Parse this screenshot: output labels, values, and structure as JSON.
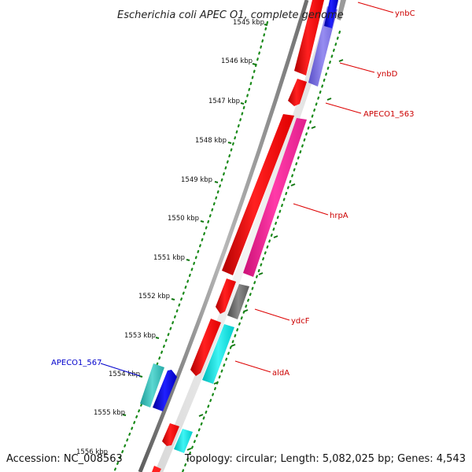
{
  "title": "Escherichia coli APEC O1, complete genome",
  "footer": {
    "accession": "Accession: NC_008563",
    "summary": "Topology: circular; Length: 5,082,025 bp; Genes: 4,543"
  },
  "ticks": [
    {
      "label": "1545 kbp"
    },
    {
      "label": "1546 kbp"
    },
    {
      "label": "1547 kbp"
    },
    {
      "label": "1548 kbp"
    },
    {
      "label": "1549 kbp"
    },
    {
      "label": "1550 kbp"
    },
    {
      "label": "1551 kbp"
    },
    {
      "label": "1552 kbp"
    },
    {
      "label": "1553 kbp"
    },
    {
      "label": "1554 kbp"
    },
    {
      "label": "1555 kbp"
    },
    {
      "label": "1556 kbp"
    }
  ],
  "gene_labels": [
    {
      "text": "ynbC",
      "color": "#cc0000"
    },
    {
      "text": "ynbD",
      "color": "#cc0000"
    },
    {
      "text": "APECO1_563",
      "color": "#cc0000"
    },
    {
      "text": "hrpA",
      "color": "#cc0000"
    },
    {
      "text": "ydcF",
      "color": "#cc0000"
    },
    {
      "text": "aldA",
      "color": "#cc0000"
    },
    {
      "text": "APECO1_567",
      "color": "#0000cc"
    }
  ],
  "colors": {
    "backbone": "#8a8a8a",
    "gc_dots": "#1a8a1a",
    "cds_forward": "#ff0000",
    "cds_reverse_pink": "#ff2a9a",
    "cds_gray": "#6e6e6e",
    "cds_cyan": "#00e5e5",
    "cds_teal": "#30c6c0",
    "cds_blue": "#0000dd",
    "cds_lavender": "#7b6fe0"
  }
}
